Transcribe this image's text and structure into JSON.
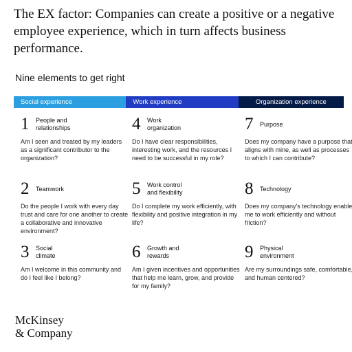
{
  "title": "The EX factor: Companies can create a positive or a negative employee experience, which in turn affects business performance.",
  "subtitle": "Nine elements to get right",
  "headers": [
    "Social experience",
    "Work experience",
    "Organization experience"
  ],
  "elements": [
    {
      "number": "1",
      "name": "People and\nrelationships",
      "question": "Am I seen and treated by my leaders as a significant contributor to the organization?"
    },
    {
      "number": "4",
      "name": "Work\norganization",
      "question": "Do I have clear responsibilities, interesting work, and the resources I need to be successful in my role?"
    },
    {
      "number": "7",
      "name": "Purpose",
      "question": "Does my company have a purpose that aligns with mine, as well as processes to which I can contribute?"
    },
    {
      "number": "2",
      "name": "Teamwork",
      "question": "Do the people I work with every day trust and care for one another to create a collaborative and innovative environment?"
    },
    {
      "number": "5",
      "name": "Work control\nand flexibility",
      "question": "Do I complete my work efficiently, with flexibility and positive integration in my life?"
    },
    {
      "number": "8",
      "name": "Technology",
      "question": "Does my company's technology enable me to work efficiently and without friction?"
    },
    {
      "number": "3",
      "name": "Social\nclimate",
      "question": "Am I welcome in this community and do I feel like I belong?"
    },
    {
      "number": "6",
      "name": "Growth and\nrewards",
      "question": "Am I given incentives and opportunities that help me learn, grow, and provide for my family?"
    },
    {
      "number": "9",
      "name": "Physical\nenvironment",
      "question": "Are my surroundings safe, comfortable, and human centered?"
    }
  ],
  "logo": {
    "line1": "McKinsey",
    "line2": "& Company"
  },
  "colors": {
    "social": "#2b9fe0",
    "work": "#1f3cc2",
    "organization": "#041b48"
  }
}
